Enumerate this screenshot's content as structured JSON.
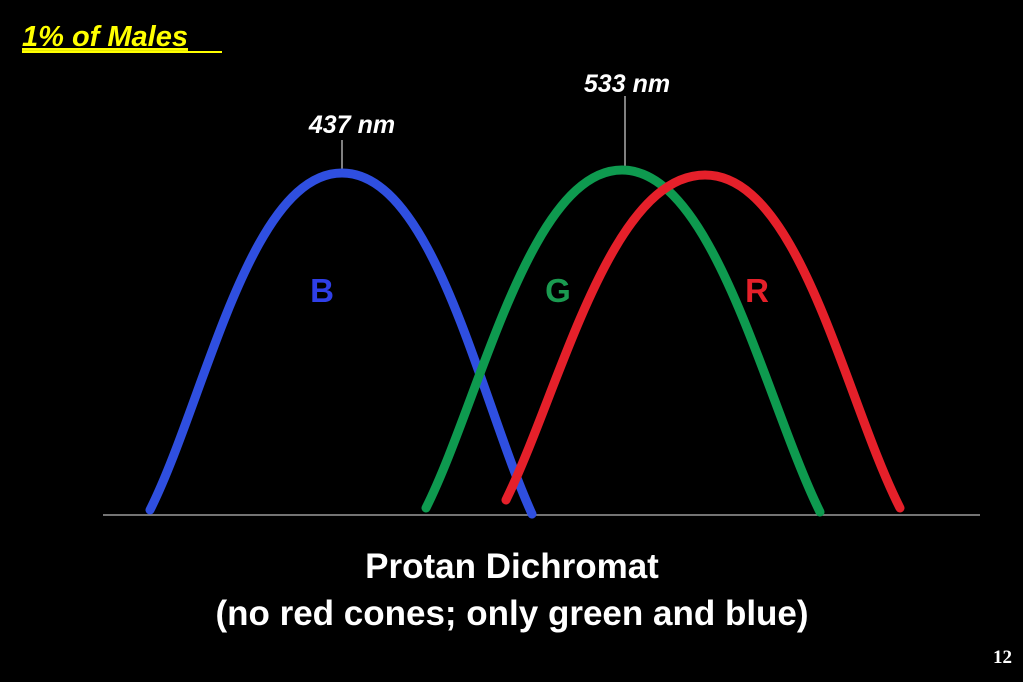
{
  "header": {
    "title": "1% of Males"
  },
  "peaks": [
    {
      "label": "437 nm"
    },
    {
      "label": "533 nm"
    }
  ],
  "curves": [
    {
      "label": "B"
    },
    {
      "label": "G"
    },
    {
      "label": "R"
    }
  ],
  "caption": {
    "line1": "Protan Dichromat",
    "line2": "(no red cones; only green and blue)"
  },
  "footer": {
    "page": "12"
  }
}
